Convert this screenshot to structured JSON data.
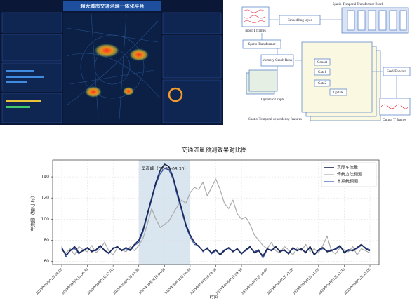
{
  "dashboard": {
    "title": "超大城市交通治理一体化平台"
  },
  "diagram": {
    "block_title": "Spatio-Temporal Transformer Block",
    "input": "Input T frames",
    "embedding": "Embedding layer",
    "spatio": "Spatio Transformer",
    "memory": "Memory Graph Bank",
    "dynamic": "Dynamic Graph",
    "features": "Spatio-Temporal dependency features",
    "feed_forward": "Feed-Forward",
    "output": "Output T' frames",
    "gate1": "Gate1",
    "gate2": "Gate2",
    "concat": "Concat",
    "update": "Update"
  },
  "chart_data": {
    "type": "line",
    "title": "交通流量预测效果对比图",
    "x_label": "时间",
    "y_label": "车流量（辆/小时）",
    "annotation": "早高峰（07:30-08:30）",
    "highlight": {
      "from": 18,
      "to": 30
    },
    "categories": [
      "2025年09月01日 06:00",
      null,
      null,
      null,
      null,
      null,
      "2025年09月01日 06:30",
      null,
      null,
      null,
      null,
      null,
      "2025年09月01日 07:00",
      null,
      null,
      null,
      null,
      null,
      "2025年09月01日 07:30",
      null,
      null,
      null,
      null,
      null,
      "2025年09月01日 08:00",
      null,
      null,
      null,
      null,
      null,
      "2025年09月01日 08:30",
      null,
      null,
      null,
      null,
      null,
      "2025年09月01日 09:00",
      null,
      null,
      null,
      null,
      null,
      "2025年09月01日 09:30",
      null,
      null,
      null,
      null,
      null,
      "2025年09月01日 10:00",
      null,
      null,
      null,
      null,
      null,
      "2025年09月01日 10:30",
      null,
      null,
      null,
      null,
      null,
      "2025年09月01日 11:00",
      null,
      null,
      null,
      null,
      null,
      "2025年09月01日 11:30",
      null,
      null,
      null,
      null,
      null,
      "2025年09月01日 12:00"
    ],
    "series": [
      {
        "name": "实际车流量",
        "color": "#1b2754",
        "width": 1.6,
        "values": [
          72,
          66,
          70,
          74,
          68,
          70,
          73,
          69,
          71,
          75,
          70,
          68,
          72,
          74,
          70,
          73,
          71,
          76,
          80,
          90,
          105,
          120,
          135,
          146,
          152,
          150,
          140,
          125,
          110,
          95,
          85,
          78,
          74,
          70,
          72,
          68,
          71,
          66,
          70,
          73,
          69,
          72,
          67,
          71,
          74,
          68,
          70,
          65,
          72,
          70,
          74,
          69,
          71,
          67,
          73,
          70,
          72,
          68,
          74,
          66,
          71,
          73,
          69,
          70,
          72,
          75,
          68,
          71,
          70,
          73,
          76,
          72,
          70
        ]
      },
      {
        "name": "传统方法预测",
        "color": "#aaaaaa",
        "width": 1.2,
        "values": [
          70,
          68,
          72,
          66,
          74,
          71,
          69,
          75,
          68,
          72,
          78,
          70,
          66,
          73,
          71,
          69,
          74,
          70,
          75,
          82,
          95,
          110,
          100,
          92,
          95,
          98,
          105,
          112,
          118,
          115,
          125,
          130,
          128,
          135,
          122,
          130,
          138,
          128,
          115,
          110,
          118,
          105,
          100,
          102,
          95,
          85,
          80,
          75,
          72,
          78,
          70,
          68,
          74,
          71,
          66,
          73,
          70,
          76,
          69,
          72,
          68,
          75,
          84,
          70,
          67,
          73,
          71,
          69,
          74,
          66,
          72,
          70,
          68
        ]
      },
      {
        "name": "本系统预测",
        "color": "#3553a6",
        "width": 1.2,
        "values": [
          74,
          64,
          71,
          72,
          67,
          71,
          72,
          70,
          70,
          74,
          71,
          67,
          73,
          73,
          71,
          72,
          70,
          75,
          78,
          88,
          103,
          118,
          133,
          143,
          148,
          147,
          138,
          122,
          108,
          93,
          83,
          76,
          75,
          69,
          73,
          67,
          70,
          67,
          71,
          72,
          70,
          71,
          68,
          70,
          73,
          69,
          71,
          63,
          71,
          71,
          73,
          70,
          70,
          68,
          72,
          71,
          71,
          69,
          73,
          67,
          70,
          72,
          70,
          71,
          71,
          74,
          69,
          70,
          71,
          72,
          75,
          73,
          71
        ]
      }
    ],
    "ylim": [
      57,
      156
    ],
    "yticks": [
      60,
      80,
      100,
      120,
      140
    ],
    "grid": true,
    "legend": "upper right"
  }
}
